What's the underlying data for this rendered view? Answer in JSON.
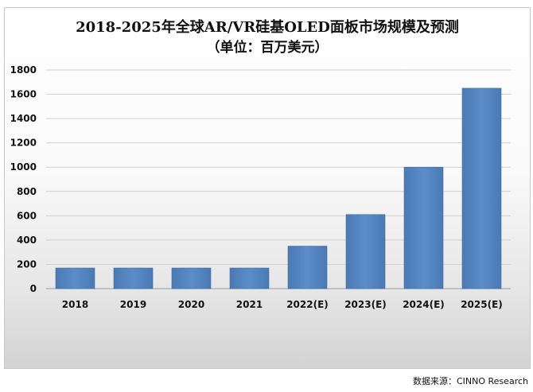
{
  "chart_data": {
    "type": "bar",
    "title": "2018-2025年全球AR/VR硅基OLED面板市场规模及预测",
    "subtitle": "（单位：百万美元）",
    "categories": [
      "2018",
      "2019",
      "2020",
      "2021",
      "2022(E)",
      "2023(E)",
      "2024(E)",
      "2025(E)"
    ],
    "values": [
      170,
      170,
      170,
      170,
      350,
      610,
      1000,
      1650
    ],
    "ylim": [
      0,
      1800
    ],
    "yticks": [
      "0",
      "200",
      "400",
      "600",
      "800",
      "1000",
      "1200",
      "1400",
      "1600",
      "1800"
    ],
    "grid": true,
    "bar_color": "#4f81bd"
  },
  "source_note": "数据来源：CINNO Research"
}
